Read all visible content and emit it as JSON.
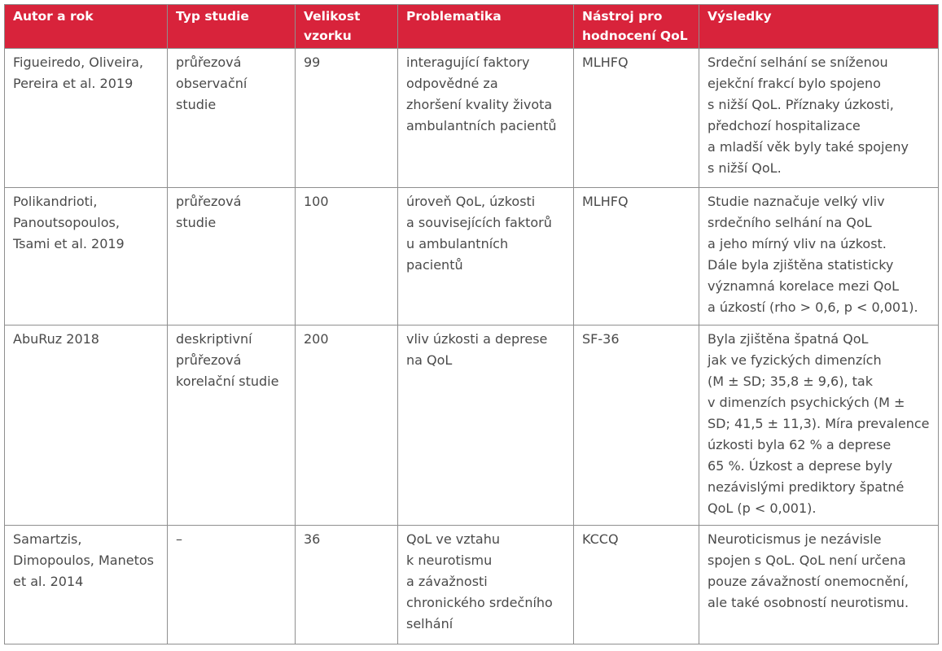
{
  "headers": [
    "Autor a rok",
    "Typ studie",
    "Velikost\nvzorku",
    "Problematika",
    "Nástroj pro\nhodnocení QoL",
    "Výsledky"
  ],
  "rows": [
    {
      "author": "Figueiredo, Oliveira,\nPereira et al. 2019",
      "type": "průřezová\nobservační\nstudie",
      "sample": "99",
      "issue": "interagující faktory\nodpovědné za\nzhoršení kvality života\nambulantních pacientů",
      "tool": "MLHFQ",
      "results": "Srdeční selhání se sníženou\nejekční frakcí bylo spojeno\ns nižší QoL. Příznaky úzkosti,\npředchozí hospitalizace\na mladší věk byly také spojeny\ns nižší QoL."
    },
    {
      "author": "Polikandrioti,\nPanoutsopoulos,\nTsami et al. 2019",
      "type": "průřezová\nstudie",
      "sample": "100",
      "issue": "úroveň QoL, úzkosti\na souvisejících faktorů\nu ambulantních\npacientů",
      "tool": "MLHFQ",
      "results": "Studie naznačuje velký vliv\nsrdečního selhání na QoL\na jeho mírný vliv na úzkost.\nDále byla zjištěna statisticky\nvýznamná korelace mezi QoL\na úzkostí (rho > 0,6, p < 0,001)."
    },
    {
      "author": "AbuRuz 2018",
      "type": "deskriptivní\nprůřezová\nkorelační studie",
      "sample": "200",
      "issue": "vliv úzkosti a deprese\nna QoL",
      "tool": "SF-36",
      "results": "Byla zjištěna špatná QoL\njak ve fyzických dimenzích\n(M ± SD; 35,8 ± 9,6), tak\nv dimenzích psychických (M ±\nSD; 41,5 ± 11,3). Míra prevalence\núzkosti byla 62 % a deprese\n65 %. Úzkost a deprese byly\nnezávislými prediktory špatné\nQoL (p < 0,001)."
    },
    {
      "author": "Samartzis,\nDimopoulos, Manetos\net al. 2014",
      "type": "–",
      "sample": "36",
      "issue": "QoL ve vztahu\nk neurotismu\na závažnosti\nchronického srdečního\nselhání",
      "tool": "KCCQ",
      "results": "Neuroticismus je nezávisle\nspojen s QoL. QoL není určena\npouze závažností onemocnění,\nale také osobností neurotismu."
    }
  ]
}
